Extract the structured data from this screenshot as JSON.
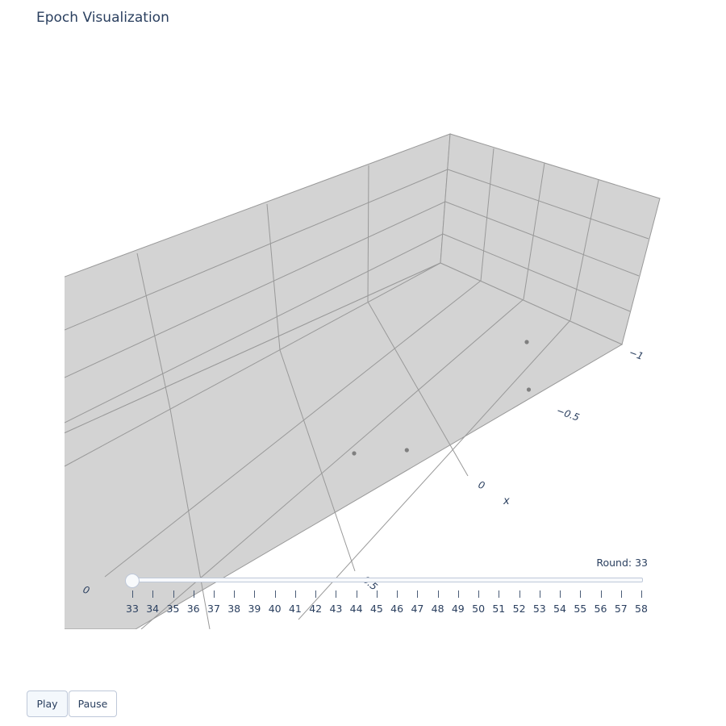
{
  "chart_data": {
    "type": "scatter3d",
    "title": "Epoch Visualization",
    "x_axis_title": "x",
    "x_tick_labels": [
      "0",
      "−0.5",
      "−1"
    ],
    "y_tick_labels": [
      "0",
      "0.5"
    ],
    "points": [
      {
        "x": -0.4,
        "y": 0.05,
        "z": 0.75
      },
      {
        "x": -0.6,
        "y": 0.2,
        "z": 0.7
      },
      {
        "x": 0.0,
        "y": 0.35,
        "z": 0.3
      },
      {
        "x": 0.4,
        "y": 0.3,
        "z": 0.1
      }
    ],
    "marker_color": "#7f7f7f",
    "scene_background": "#d3d3d3",
    "grid_color": "#999999"
  },
  "slider": {
    "label": "Round: 33",
    "current": 33,
    "steps": [
      "33",
      "34",
      "35",
      "36",
      "37",
      "38",
      "39",
      "40",
      "41",
      "42",
      "43",
      "44",
      "45",
      "46",
      "47",
      "48",
      "49",
      "50",
      "51",
      "52",
      "53",
      "54",
      "55",
      "56",
      "57",
      "58"
    ]
  },
  "buttons": {
    "play": "Play",
    "pause": "Pause"
  }
}
